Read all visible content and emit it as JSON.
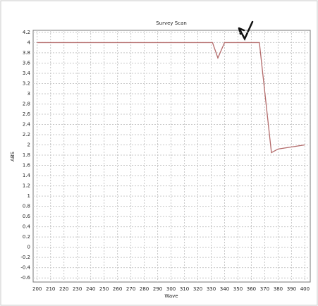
{
  "chart_data": {
    "type": "line",
    "title": "Survey Scan",
    "x_label": "Wave",
    "y_label": "ABS",
    "x": [
      200,
      331,
      335,
      340,
      366,
      375,
      380,
      400
    ],
    "series": [
      {
        "name": "ABS",
        "color": "#b36a6a",
        "values": [
          4,
          4,
          3.7,
          4,
          4,
          1.85,
          1.92,
          2.0
        ]
      }
    ],
    "xlim": [
      197,
      404
    ],
    "ylim": [
      -0.68,
      4.24
    ],
    "xticks": [
      200,
      210,
      220,
      230,
      240,
      250,
      260,
      270,
      280,
      290,
      300,
      310,
      320,
      330,
      340,
      350,
      360,
      370,
      380,
      390,
      400
    ],
    "yticks": [
      -0.6,
      -0.4,
      -0.2,
      0,
      0.2,
      0.4,
      0.6,
      0.8,
      1,
      1.2,
      1.4,
      1.6,
      1.8,
      2,
      2.2,
      2.4,
      2.6,
      2.8,
      3,
      3.2,
      3.4,
      3.6,
      3.8,
      4,
      4.2
    ],
    "grid": true
  }
}
